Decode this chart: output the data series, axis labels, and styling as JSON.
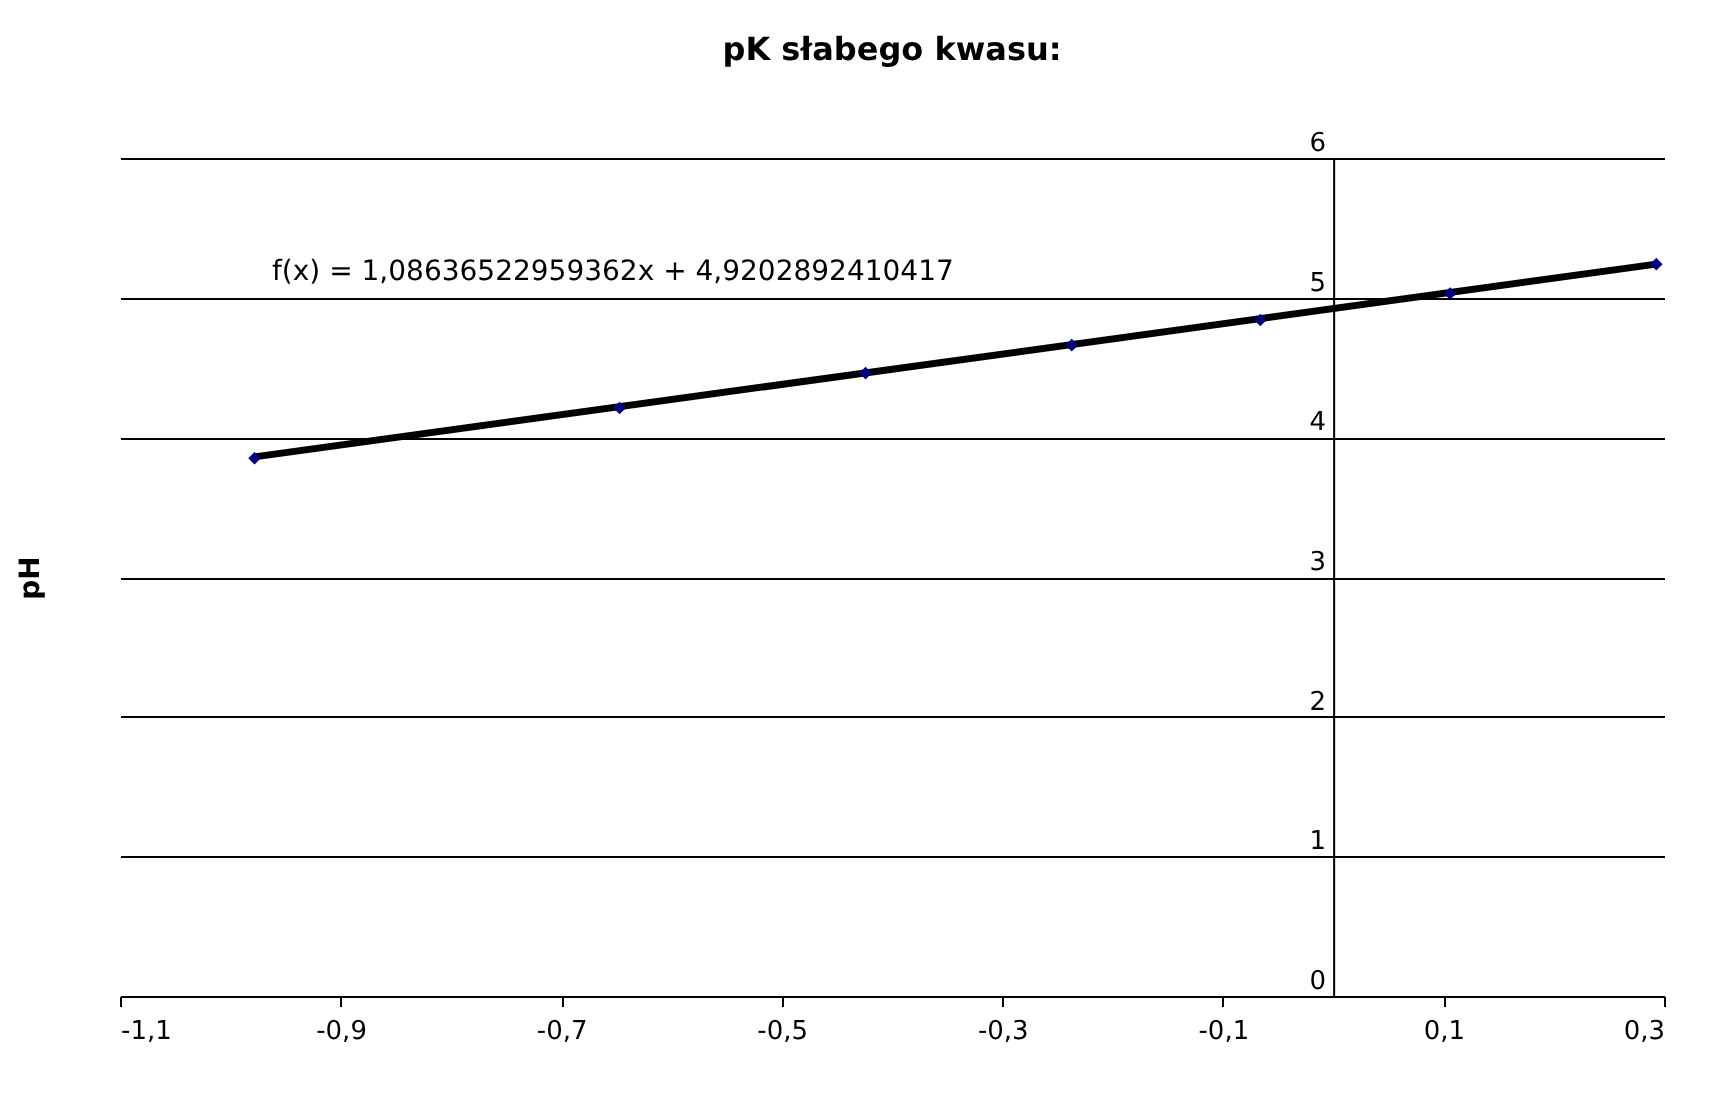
{
  "chart_data": {
    "type": "scatter",
    "title": "pK słabego kwasu:",
    "ylabel": "pH",
    "annotations": [
      "f(x) = 1,08636522959362x + 4,9202892410417"
    ],
    "series": [
      {
        "type": "line",
        "marker": "none",
        "color": "#000000",
        "x": [
          -0.978,
          0.293
        ],
        "values": [
          3.86,
          5.24
        ]
      },
      {
        "color": "#000080",
        "x": [
          -0.978,
          -0.647,
          -0.424,
          -0.237,
          -0.066,
          0.106,
          0.293
        ],
        "values": [
          3.85,
          4.21,
          4.46,
          4.66,
          4.84,
          5.03,
          5.24
        ]
      }
    ],
    "marker": "diamond",
    "grid": "y",
    "legend": false,
    "xlim": [
      -1.1,
      0.3
    ],
    "ylim": [
      0,
      6
    ],
    "xticks": [
      {
        "value": -1.1,
        "label": "-1,1"
      },
      {
        "value": -0.9,
        "label": "-0,9"
      },
      {
        "value": -0.7,
        "label": "-0,7"
      },
      {
        "value": -0.5,
        "label": "-0,5"
      },
      {
        "value": -0.3,
        "label": "-0,3"
      },
      {
        "value": -0.1,
        "label": "-0,1"
      },
      {
        "value": 0.1,
        "label": "0,1"
      },
      {
        "value": 0.3,
        "label": "0,3"
      }
    ],
    "yticks": [
      0,
      1,
      2,
      3,
      4,
      5,
      6
    ]
  }
}
